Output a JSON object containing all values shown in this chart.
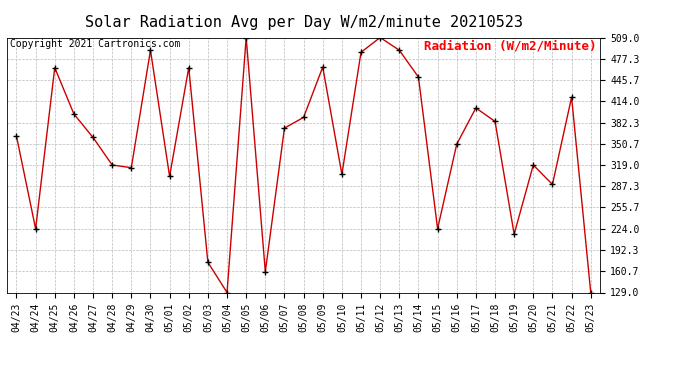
{
  "title": "Solar Radiation Avg per Day W/m2/minute 20210523",
  "copyright": "Copyright 2021 Cartronics.com",
  "legend_label": "Radiation (W/m2/Minute)",
  "dates": [
    "04/23",
    "04/24",
    "04/25",
    "04/26",
    "04/27",
    "04/28",
    "04/29",
    "04/30",
    "05/01",
    "05/02",
    "05/03",
    "05/04",
    "05/05",
    "05/06",
    "05/07",
    "05/08",
    "05/09",
    "05/10",
    "05/11",
    "05/12",
    "05/13",
    "05/14",
    "05/15",
    "05/16",
    "05/17",
    "05/18",
    "05/19",
    "05/20",
    "05/21",
    "05/22",
    "05/23"
  ],
  "values": [
    362,
    224,
    464,
    395,
    360,
    319,
    315,
    490,
    302,
    464,
    174,
    129,
    509,
    160,
    374,
    390,
    465,
    305,
    487,
    509,
    490,
    450,
    224,
    350,
    404,
    384,
    216,
    319,
    290,
    420,
    129
  ],
  "line_color": "#cc0000",
  "marker_color": "#000000",
  "background_color": "#ffffff",
  "grid_color": "#bbbbbb",
  "yticks": [
    129.0,
    160.7,
    192.3,
    224.0,
    255.7,
    287.3,
    319.0,
    350.7,
    382.3,
    414.0,
    445.7,
    477.3,
    509.0
  ],
  "ylim": [
    129.0,
    509.0
  ],
  "title_fontsize": 11,
  "tick_fontsize": 7,
  "legend_fontsize": 9,
  "copyright_fontsize": 7
}
